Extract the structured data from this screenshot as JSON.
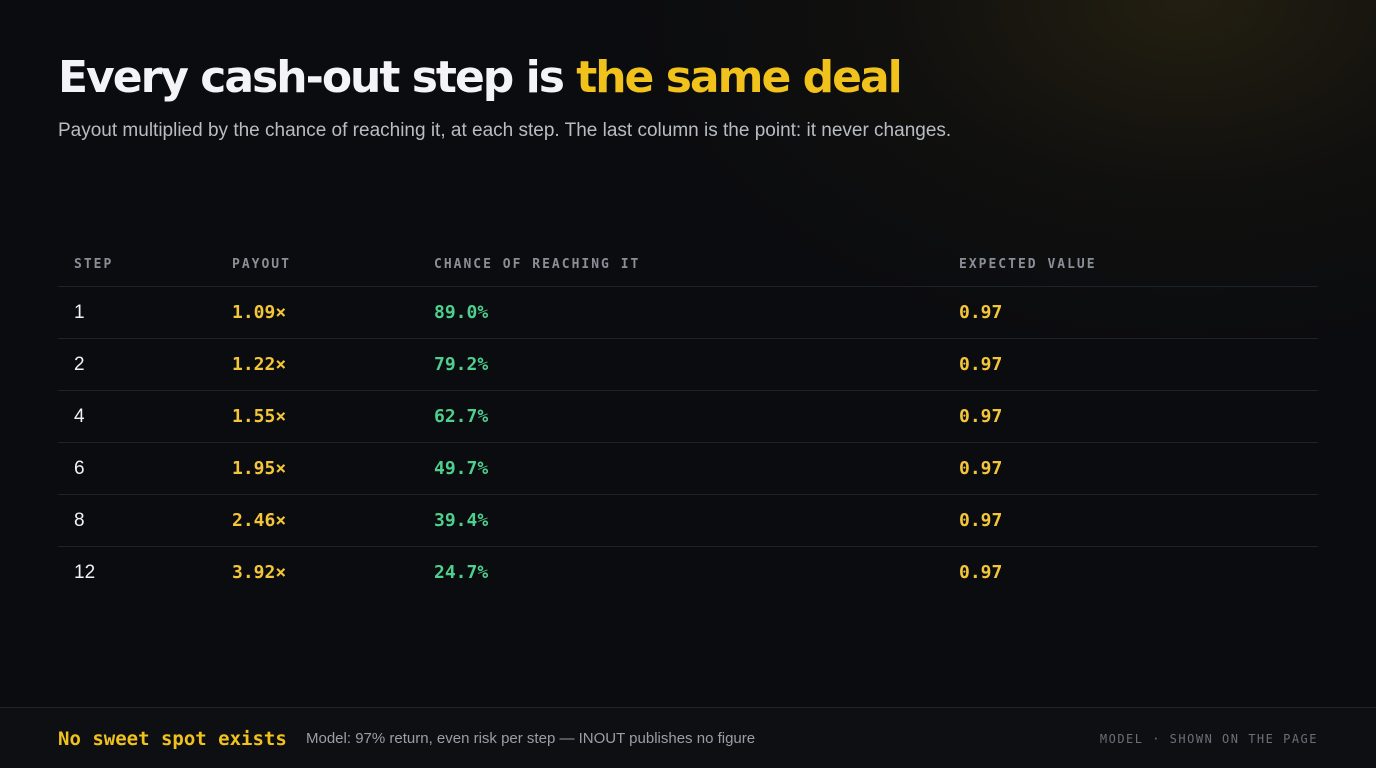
{
  "header": {
    "title_lead": "Every cash-out step is ",
    "title_accent": "the same deal",
    "subtitle": "Payout multiplied by the chance of reaching it, at each step. The last column is the point: it never changes."
  },
  "table": {
    "columns": [
      "STEP",
      "PAYOUT",
      "CHANCE OF REACHING IT",
      "EXPECTED VALUE"
    ],
    "rows": [
      {
        "step": "1",
        "payout": "1.09×",
        "chance": "89.0%",
        "ev": "0.97"
      },
      {
        "step": "2",
        "payout": "1.22×",
        "chance": "79.2%",
        "ev": "0.97"
      },
      {
        "step": "4",
        "payout": "1.55×",
        "chance": "62.7%",
        "ev": "0.97"
      },
      {
        "step": "6",
        "payout": "1.95×",
        "chance": "49.7%",
        "ev": "0.97"
      },
      {
        "step": "8",
        "payout": "2.46×",
        "chance": "39.4%",
        "ev": "0.97"
      },
      {
        "step": "12",
        "payout": "3.92×",
        "chance": "24.7%",
        "ev": "0.97"
      }
    ]
  },
  "footer": {
    "title": "No sweet spot exists",
    "note": "Model: 97% return, even risk per step — INOUT publishes no figure",
    "source": "MODEL · SHOWN ON THE PAGE"
  },
  "colors": {
    "background": "#0b0c0f",
    "accent_gold": "#f1c21b",
    "payout_gold": "#f3c63a",
    "chance_green": "#4fcf8d"
  }
}
